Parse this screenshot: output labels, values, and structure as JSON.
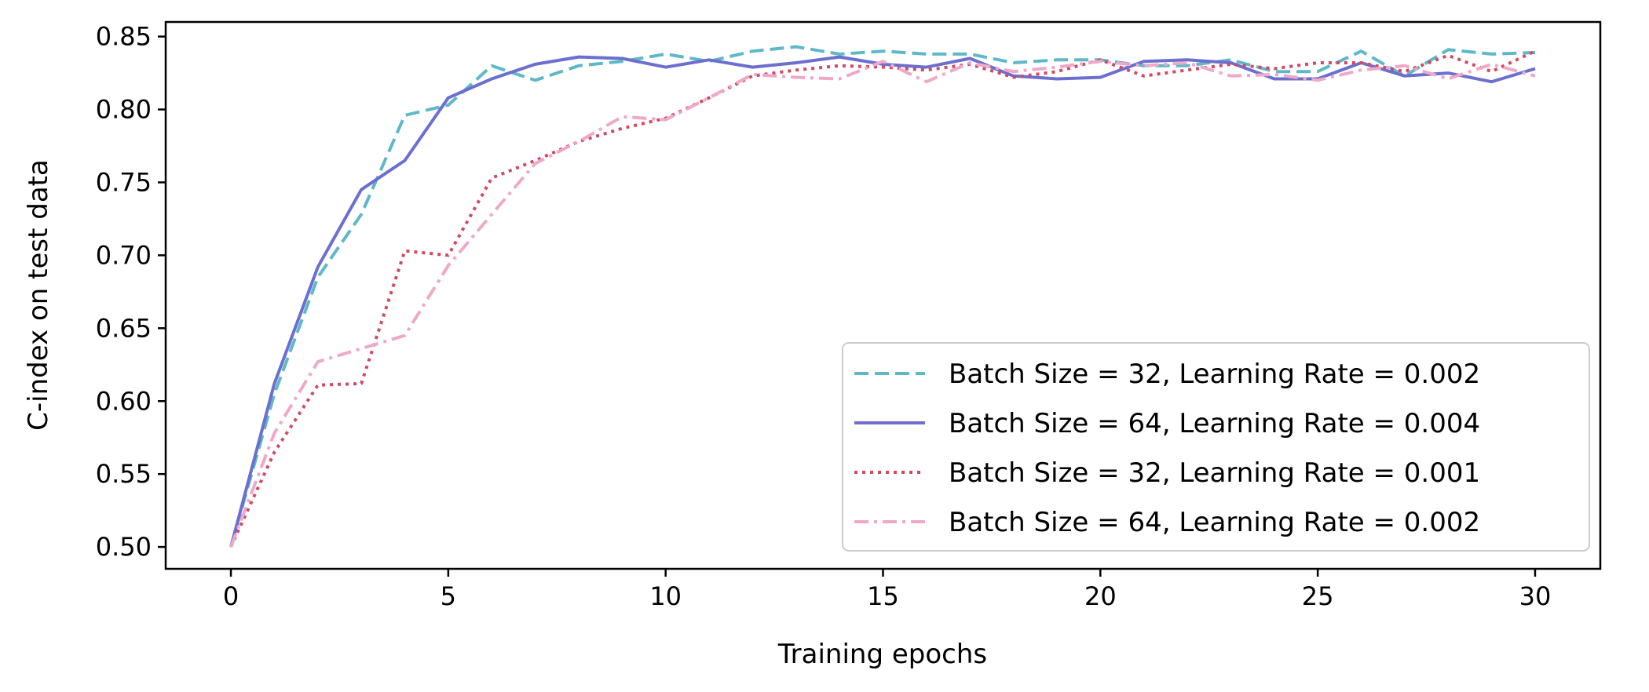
{
  "chart_data": {
    "type": "line",
    "title": "",
    "xlabel": "Training epochs",
    "ylabel": "C-index on test data",
    "xlim": [
      -1.5,
      31.5
    ],
    "ylim": [
      0.485,
      0.86
    ],
    "xticks": [
      0,
      5,
      10,
      15,
      20,
      25,
      30
    ],
    "xtick_labels": [
      "0",
      "5",
      "10",
      "15",
      "20",
      "25",
      "30"
    ],
    "yticks": [
      0.5,
      0.55,
      0.6,
      0.65,
      0.7,
      0.75,
      0.8,
      0.85
    ],
    "ytick_labels": [
      "0.50",
      "0.55",
      "0.60",
      "0.65",
      "0.70",
      "0.75",
      "0.80",
      "0.85"
    ],
    "grid": false,
    "legend_position": "lower-right",
    "x": [
      0,
      1,
      2,
      3,
      4,
      5,
      6,
      7,
      8,
      9,
      10,
      11,
      12,
      13,
      14,
      15,
      16,
      17,
      18,
      19,
      20,
      21,
      22,
      23,
      24,
      25,
      26,
      27,
      28,
      29,
      30
    ],
    "series": [
      {
        "name": "Batch Size = 32, Learning Rate = 0.002",
        "color": "#5fb8c8",
        "style": "dashed",
        "values": [
          0.5,
          0.605,
          0.685,
          0.728,
          0.796,
          0.803,
          0.83,
          0.82,
          0.83,
          0.833,
          0.838,
          0.833,
          0.84,
          0.843,
          0.838,
          0.84,
          0.838,
          0.838,
          0.832,
          0.834,
          0.834,
          0.83,
          0.83,
          0.834,
          0.826,
          0.826,
          0.84,
          0.823,
          0.841,
          0.838,
          0.839
        ]
      },
      {
        "name": "Batch Size = 64, Learning Rate = 0.004",
        "color": "#6b6fcf",
        "style": "solid",
        "values": [
          0.5,
          0.612,
          0.692,
          0.745,
          0.765,
          0.808,
          0.821,
          0.831,
          0.836,
          0.835,
          0.829,
          0.834,
          0.829,
          0.832,
          0.836,
          0.831,
          0.829,
          0.835,
          0.823,
          0.821,
          0.822,
          0.833,
          0.834,
          0.832,
          0.821,
          0.821,
          0.832,
          0.823,
          0.825,
          0.819,
          0.828
        ]
      },
      {
        "name": "Batch Size = 32, Learning Rate = 0.001",
        "color": "#d04a62",
        "style": "dotted",
        "values": [
          0.5,
          0.565,
          0.611,
          0.612,
          0.703,
          0.7,
          0.753,
          0.765,
          0.778,
          0.787,
          0.794,
          0.808,
          0.823,
          0.827,
          0.83,
          0.829,
          0.827,
          0.831,
          0.822,
          0.826,
          0.834,
          0.823,
          0.827,
          0.831,
          0.828,
          0.832,
          0.832,
          0.826,
          0.837,
          0.826,
          0.84
        ]
      },
      {
        "name": "Batch Size = 64, Learning Rate = 0.002",
        "color": "#f0a8c8",
        "style": "dashdot",
        "values": [
          0.5,
          0.578,
          0.627,
          0.636,
          0.645,
          0.693,
          0.728,
          0.763,
          0.778,
          0.795,
          0.793,
          0.808,
          0.824,
          0.822,
          0.821,
          0.833,
          0.819,
          0.832,
          0.826,
          0.829,
          0.833,
          0.83,
          0.832,
          0.823,
          0.824,
          0.82,
          0.827,
          0.83,
          0.821,
          0.831,
          0.823
        ]
      }
    ]
  }
}
